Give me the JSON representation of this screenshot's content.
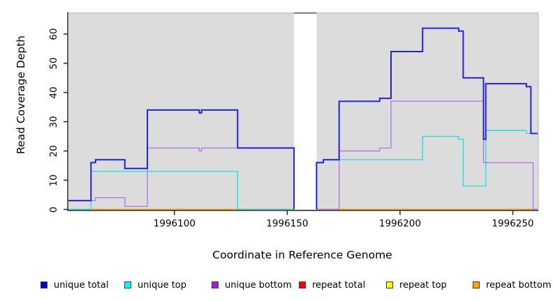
{
  "figure": {
    "panel_bg": "#dcdcdc",
    "panel_border": "#c4c4c4",
    "gap_marker_color": "#8a8a8a",
    "axis_color": "#1c1c1c",
    "text_color": "#000000"
  },
  "chart_data": {
    "type": "line",
    "subtype": "step-after-coverage",
    "title": "",
    "xlabel": "Coordinate in Reference Genome",
    "ylabel": "Read Coverage Depth",
    "xlim": [
      1996053,
      1996261
    ],
    "ylim": [
      0,
      67
    ],
    "x_ticks": [
      1996100,
      1996150,
      1996200,
      1996250
    ],
    "y_ticks": [
      0,
      10,
      20,
      30,
      40,
      50,
      60
    ],
    "grid": false,
    "gap_region": [
      1996153,
      1996163
    ],
    "legend_position": "bottom",
    "series": [
      {
        "name": "repeat total",
        "color": "#e02020",
        "width": 1.2,
        "regions": [
          [
            [
              1996053,
              0
            ],
            [
              1996153,
              0
            ]
          ],
          [
            [
              1996163,
              0
            ],
            [
              1996261,
              0
            ]
          ]
        ]
      },
      {
        "name": "repeat top",
        "color": "#f0e22a",
        "width": 1.2,
        "regions": [
          [
            [
              1996053,
              0
            ],
            [
              1996153,
              0
            ]
          ],
          [
            [
              1996163,
              0
            ],
            [
              1996261,
              0
            ]
          ]
        ]
      },
      {
        "name": "repeat bottom",
        "color": "#ffa500",
        "width": 1.6,
        "regions": [
          [
            [
              1996063,
              0
            ],
            [
              1996153,
              0
            ]
          ],
          [
            [
              1996163,
              0
            ],
            [
              1996261,
              0
            ]
          ]
        ]
      },
      {
        "name": "unique top",
        "color": "#27dce6",
        "width": 1.4,
        "regions": [
          [
            [
              1996053,
              0
            ],
            [
              1996063,
              13
            ],
            [
              1996128,
              0
            ],
            [
              1996153,
              0
            ]
          ],
          [
            [
              1996163,
              0
            ],
            [
              1996163,
              16
            ],
            [
              1996166,
              17
            ],
            [
              1996210,
              25
            ],
            [
              1996226,
              24
            ],
            [
              1996228,
              8
            ],
            [
              1996238,
              27
            ],
            [
              1996256,
              26
            ],
            [
              1996261,
              26
            ]
          ]
        ]
      },
      {
        "name": "unique bottom",
        "color": "#af7ce6",
        "width": 1.4,
        "regions": [
          [
            [
              1996053,
              3
            ],
            [
              1996065,
              4
            ],
            [
              1996078,
              1
            ],
            [
              1996088,
              21
            ],
            [
              1996111,
              20
            ],
            [
              1996112,
              21
            ],
            [
              1996153,
              0
            ]
          ],
          [
            [
              1996163,
              0
            ],
            [
              1996173,
              20
            ],
            [
              1996191,
              21
            ],
            [
              1996196,
              37
            ],
            [
              1996237,
              16
            ],
            [
              1996259,
              0
            ],
            [
              1996261,
              0
            ]
          ]
        ]
      },
      {
        "name": "unique total",
        "color": "#2222dd",
        "width": 2,
        "regions": [
          [
            [
              1996053,
              3
            ],
            [
              1996063,
              16
            ],
            [
              1996065,
              17
            ],
            [
              1996078,
              14
            ],
            [
              1996088,
              34
            ],
            [
              1996111,
              33
            ],
            [
              1996112,
              34
            ],
            [
              1996128,
              21
            ],
            [
              1996153,
              0
            ]
          ],
          [
            [
              1996163,
              0
            ],
            [
              1996163,
              16
            ],
            [
              1996166,
              17
            ],
            [
              1996173,
              37
            ],
            [
              1996191,
              38
            ],
            [
              1996196,
              54
            ],
            [
              1996210,
              62
            ],
            [
              1996226,
              61
            ],
            [
              1996228,
              45
            ],
            [
              1996237,
              24
            ],
            [
              1996238,
              43
            ],
            [
              1996256,
              42
            ],
            [
              1996258,
              26
            ],
            [
              1996261,
              26
            ]
          ]
        ]
      }
    ]
  },
  "legend": {
    "items": [
      {
        "label": "unique total",
        "color": "#0000cc"
      },
      {
        "label": "unique top",
        "color": "#00ffff"
      },
      {
        "label": "unique bottom",
        "color": "#9d1fd6"
      },
      {
        "label": "repeat total",
        "color": "#ff0000"
      },
      {
        "label": "repeat top",
        "color": "#ffff00"
      },
      {
        "label": "repeat bottom",
        "color": "#ffa500"
      }
    ]
  }
}
